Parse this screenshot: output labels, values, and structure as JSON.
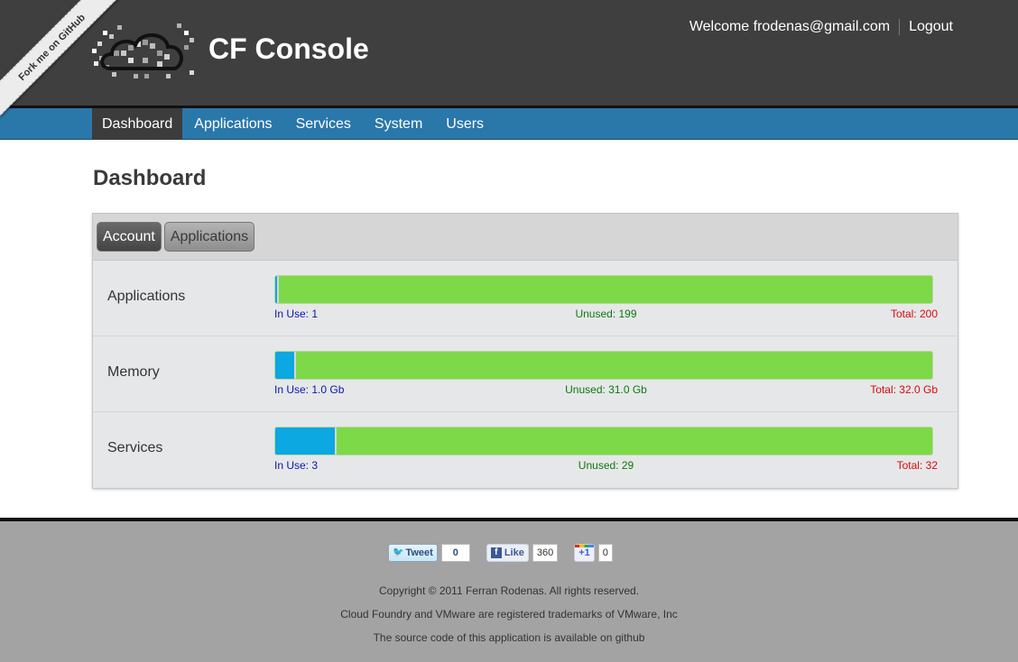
{
  "header": {
    "ribbon_text": "Fork me on GitHub",
    "brand": "CF Console",
    "welcome_text": "Welcome frodenas@gmail.com",
    "logout_label": "Logout"
  },
  "nav": {
    "items": [
      {
        "label": "Dashboard",
        "active": true
      },
      {
        "label": "Applications",
        "active": false
      },
      {
        "label": "Services",
        "active": false
      },
      {
        "label": "System",
        "active": false
      },
      {
        "label": "Users",
        "active": false
      }
    ]
  },
  "main": {
    "title": "Dashboard",
    "tabs": [
      {
        "label": "Account",
        "active": true
      },
      {
        "label": "Applications",
        "active": false
      }
    ],
    "rows": [
      {
        "label": "Applications",
        "used_fraction": 0.005,
        "in_use": "In Use: 1",
        "unused": "Unused: 199",
        "total": "Total: 200"
      },
      {
        "label": "Memory",
        "used_fraction": 0.03125,
        "in_use": "In Use: 1.0 Gb",
        "unused": "Unused: 31.0 Gb",
        "total": "Total: 32.0 Gb"
      },
      {
        "label": "Services",
        "used_fraction": 0.09375,
        "in_use": "In Use: 3",
        "unused": "Unused: 29",
        "total": "Total: 32"
      }
    ]
  },
  "footer": {
    "tweet_label": "Tweet",
    "tweet_count": "0",
    "like_label": "Like",
    "like_count": "360",
    "plusone_label": "+1",
    "plusone_count": "0",
    "copyright": "Copyright © 2011 Ferran Rodenas. All rights reserved.",
    "trademark": "Cloud Foundry and VMware are registered trademarks of VMware, Inc",
    "source": "The source code of this application is available on github"
  },
  "colors": {
    "header_bg": "#3f3f3f",
    "nav_bg": "#2a77aa",
    "used": "#0ba8e2",
    "unused": "#7dd947",
    "in_use_text": "#0a17a8",
    "unused_text": "#0c7a0c",
    "total_text": "#d80a0a"
  }
}
